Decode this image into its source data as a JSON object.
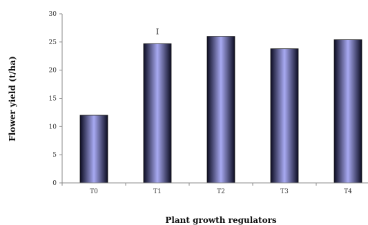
{
  "chart_data": {
    "type": "bar",
    "title": "",
    "xlabel": "Plant growth regulators",
    "ylabel": "Flower yield (t/ha)",
    "categories": [
      "T0",
      "T1",
      "T2",
      "T3",
      "T4"
    ],
    "values": [
      12.0,
      24.7,
      26.0,
      23.8,
      25.4
    ],
    "ylim": [
      0,
      30
    ],
    "yticks": [
      0,
      5,
      10,
      15,
      20,
      25,
      30
    ],
    "grid": false,
    "legend": "none",
    "annotations": [
      {
        "text": "I",
        "category": "T1"
      }
    ],
    "colors": {
      "bar_center": "#a8aaf2",
      "bar_edge": "#0c0c22",
      "axis": "#888888"
    }
  }
}
